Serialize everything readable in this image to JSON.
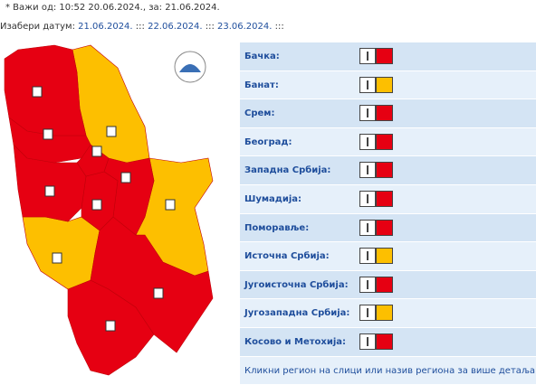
{
  "header": {
    "valid_line": "* Важи од: 10:52 20.06.2024., за: 21.06.2024.",
    "date_label": "Изабери датум:",
    "separator": ":::",
    "dates": [
      "21.06.2024.",
      "22.06.2024.",
      "23.06.2024."
    ]
  },
  "regions": [
    {
      "name": "Бачка:",
      "color": "#e60012"
    },
    {
      "name": "Банат:",
      "color": "#fdbf00"
    },
    {
      "name": "Срем:",
      "color": "#e60012"
    },
    {
      "name": "Београд:",
      "color": "#e60012"
    },
    {
      "name": "Западна Србија:",
      "color": "#e60012"
    },
    {
      "name": "Шумадија:",
      "color": "#e60012"
    },
    {
      "name": "Поморавље:",
      "color": "#e60012"
    },
    {
      "name": "Источна Србија:",
      "color": "#fdbf00"
    },
    {
      "name": "Југоисточна Србија:",
      "color": "#e60012"
    },
    {
      "name": "Југозападна Србија:",
      "color": "#fdbf00"
    },
    {
      "name": "Косово и Метохија:",
      "color": "#e60012"
    }
  ],
  "footer_note": "Кликни регион на слици или назив региона за више детаља"
}
